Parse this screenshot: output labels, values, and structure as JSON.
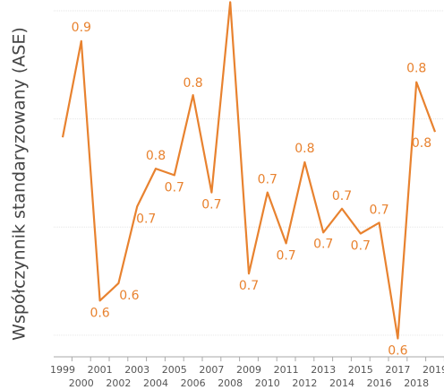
{
  "chart_data": {
    "type": "line",
    "y_label": "Współczynnik  standaryzowany (ASE)",
    "categories": [
      "1999",
      "2000",
      "2001",
      "2002",
      "2003",
      "2004",
      "2005",
      "2006",
      "2007",
      "2008",
      "2009",
      "2010",
      "2011",
      "2012",
      "2013",
      "2014",
      "2015",
      "2016",
      "2017",
      "2018",
      "2019"
    ],
    "series": [
      {
        "color": "#e8822f",
        "values": [
          0.783,
          0.872,
          0.632,
          0.648,
          0.719,
          0.754,
          0.748,
          0.822,
          0.732,
          0.908,
          0.657,
          0.732,
          0.685,
          0.76,
          0.695,
          0.717,
          0.694,
          0.704,
          0.597,
          0.834,
          0.788
        ],
        "value_labels": [
          null,
          "0.9",
          "0.6",
          "0.6",
          "0.7",
          "0.8",
          "0.7",
          "0.8",
          "0.7",
          null,
          "0.7",
          "0.7",
          "0.7",
          "0.8",
          "0.7",
          "0.7",
          "0.7",
          "0.7",
          "0.6",
          "0.8",
          "0.8"
        ]
      }
    ],
    "ylim": [
      0.58,
      0.91
    ],
    "y_grid": [
      0.6,
      0.7,
      0.8,
      0.9
    ]
  }
}
